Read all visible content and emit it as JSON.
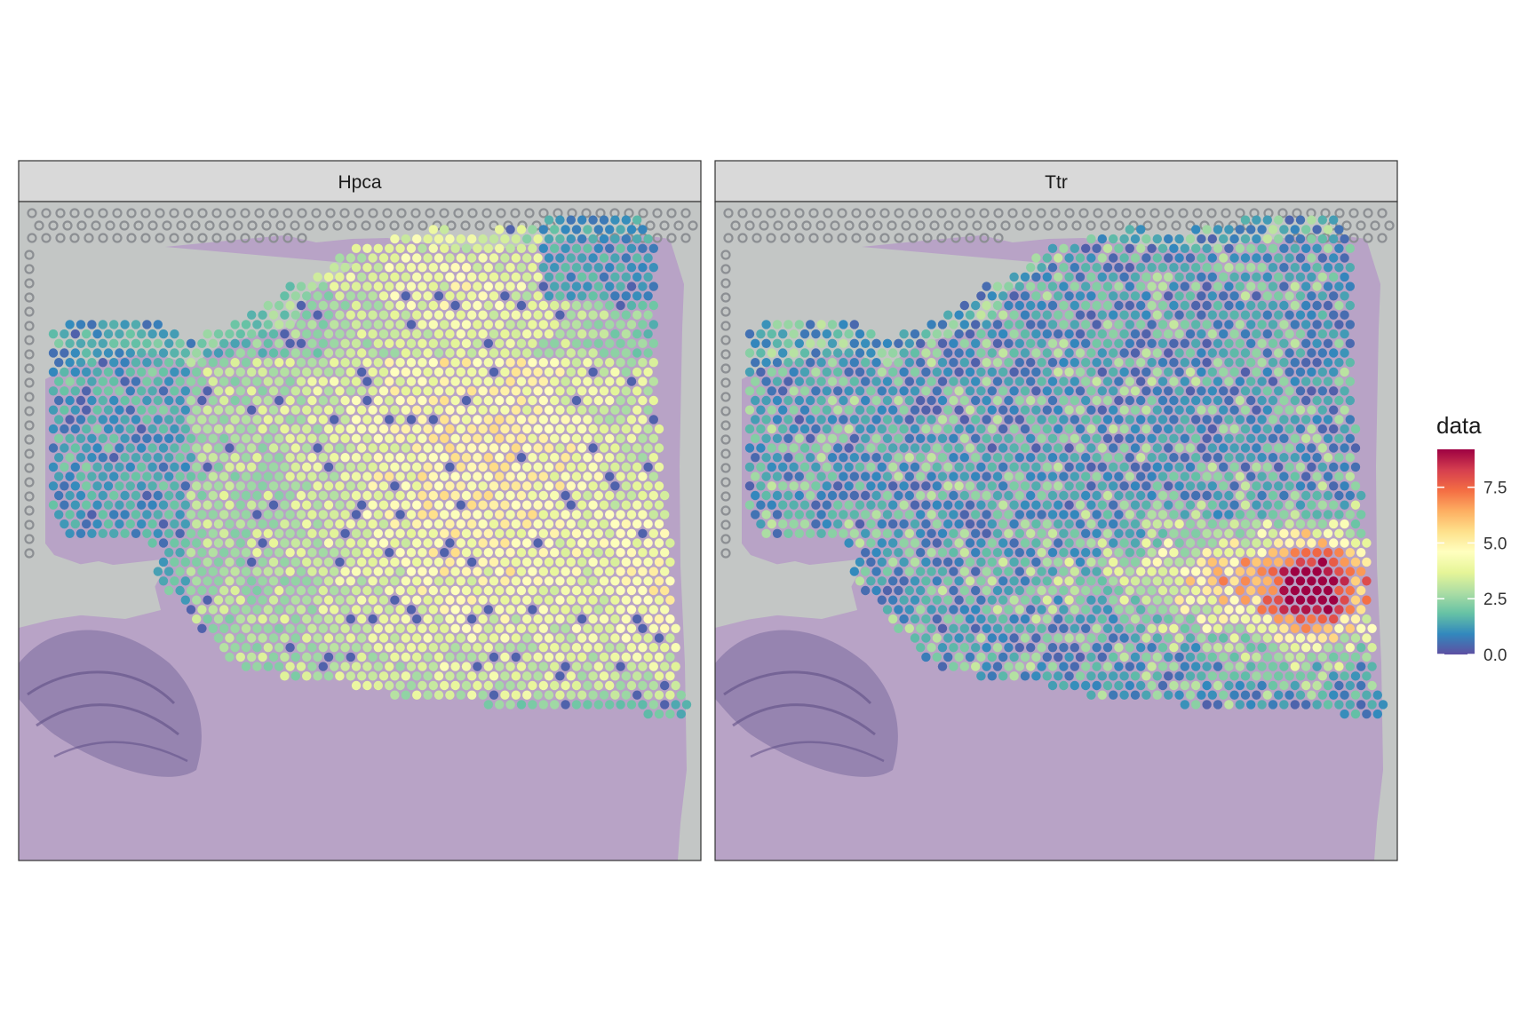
{
  "chart_data": {
    "type": "scatter",
    "title": "",
    "xlabel": "",
    "ylabel": "",
    "background": "H&E tissue image",
    "colormap": "Spectral (reversed): low = dark blue/purple, high = dark red",
    "facets": [
      {
        "label": "Hpca",
        "pattern": "expression high (about 4-5.5) across a broad region in the upper/centre-right part of the tissue (hippocampal area), low (0-1.5) in the left lobe and along the top rim",
        "approx_range": [
          0,
          5.5
        ]
      },
      {
        "label": "Ttr",
        "pattern": "mostly low (0-2) everywhere; a hotspot on the right side of the section (choroid plexus) reaching about 9",
        "approx_range": [
          0,
          9.2
        ]
      }
    ],
    "legend": {
      "title": "data",
      "position": "right",
      "min": 0,
      "max": 9.2,
      "ticks": [
        {
          "value": 0,
          "label": "0.0"
        },
        {
          "value": 2.5,
          "label": "2.5"
        },
        {
          "value": 5,
          "label": "5.0"
        },
        {
          "value": 7.5,
          "label": "7.5"
        }
      ],
      "colors": [
        "#5e4fa2",
        "#3288bd",
        "#66c2a5",
        "#abdda4",
        "#e6f598",
        "#ffffbf",
        "#fee08b",
        "#fdae61",
        "#f46d43",
        "#d53e4f",
        "#9e0142"
      ]
    }
  }
}
